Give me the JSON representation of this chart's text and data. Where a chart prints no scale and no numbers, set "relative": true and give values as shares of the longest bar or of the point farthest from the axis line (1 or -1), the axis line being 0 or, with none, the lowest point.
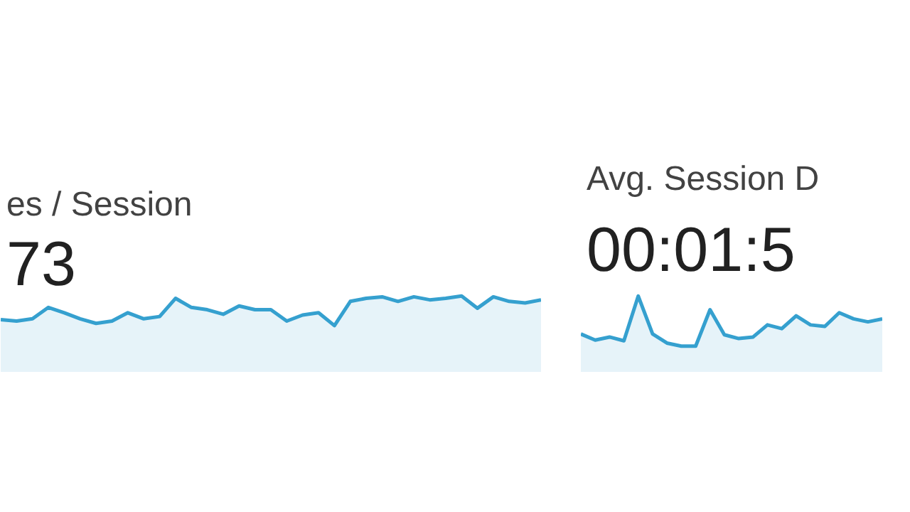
{
  "chart_data": [
    {
      "type": "area",
      "title": "es / Session",
      "subtitle": "73",
      "relative": true,
      "categories": [
        null,
        null,
        null,
        null,
        null,
        null,
        null,
        null,
        null,
        null,
        null,
        null,
        null,
        null,
        null,
        null,
        null,
        null,
        null,
        null,
        null,
        null,
        null,
        null,
        null,
        null,
        null,
        null,
        null,
        null,
        null,
        null,
        null,
        null,
        null
      ],
      "series": [
        {
          "color": "#35a0cf",
          "values": [
            0.69,
            0.67,
            0.7,
            0.85,
            0.78,
            0.7,
            0.64,
            0.67,
            0.78,
            0.7,
            0.73,
            0.97,
            0.85,
            0.82,
            0.76,
            0.87,
            0.82,
            0.82,
            0.67,
            0.75,
            0.78,
            0.61,
            0.93,
            0.97,
            0.99,
            0.93,
            0.99,
            0.95,
            0.97,
            1.0,
            0.84,
            0.99,
            0.93,
            0.91,
            0.95
          ]
        }
      ]
    },
    {
      "type": "area",
      "title": "Avg. Session D",
      "subtitle": "00:01:5",
      "relative": true,
      "categories": [
        null,
        null,
        null,
        null,
        null,
        null,
        null,
        null,
        null,
        null,
        null,
        null,
        null,
        null,
        null,
        null,
        null,
        null,
        null,
        null,
        null,
        null
      ],
      "series": [
        {
          "color": "#35a0cf",
          "values": [
            0.5,
            0.42,
            0.46,
            0.41,
            1.0,
            0.5,
            0.38,
            0.34,
            0.34,
            0.82,
            0.49,
            0.44,
            0.46,
            0.62,
            0.57,
            0.74,
            0.62,
            0.6,
            0.78,
            0.7,
            0.66,
            0.7
          ]
        }
      ]
    }
  ]
}
